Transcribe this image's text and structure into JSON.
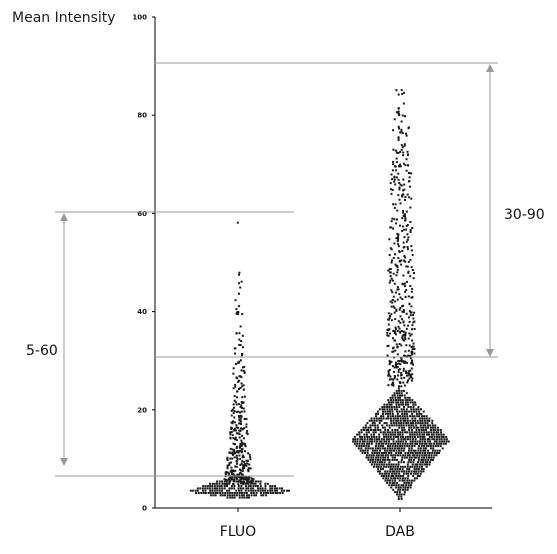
{
  "chart_data": {
    "type": "scatter",
    "ylabel": "Mean Intensity",
    "ylim": [
      0,
      100
    ],
    "yticks": [
      0,
      20,
      40,
      60,
      80,
      100
    ],
    "categories": [
      "FLUO",
      "DAB"
    ],
    "series": [
      {
        "values": {
          "core": [
            2,
            7
          ],
          "core_center": 3.5,
          "tail_bins": [
            [
              5,
              8,
              90
            ],
            [
              8,
              12,
              70
            ],
            [
              12,
              16,
              50
            ],
            [
              16,
              20,
              40
            ],
            [
              20,
              25,
              30
            ],
            [
              25,
              30,
              22
            ],
            [
              30,
              35,
              12
            ],
            [
              35,
              40,
              8
            ],
            [
              40,
              45,
              6
            ],
            [
              45,
              50,
              5
            ],
            [
              57,
              59,
              1
            ]
          ]
        }
      },
      {
        "values": {
          "core": [
            2,
            25
          ],
          "core_center": 14,
          "tail_bins": [
            [
              25,
              30,
              80
            ],
            [
              30,
              40,
              120
            ],
            [
              40,
              50,
              80
            ],
            [
              50,
              60,
              70
            ],
            [
              60,
              70,
              60
            ],
            [
              70,
              80,
              40
            ],
            [
              80,
              86,
              16
            ]
          ]
        }
      }
    ],
    "annotations": [
      {
        "label": "5-60",
        "range": [
          6.5,
          60
        ]
      },
      {
        "label": "30-90",
        "range": [
          30.5,
          90
        ]
      }
    ],
    "grid": false
  }
}
